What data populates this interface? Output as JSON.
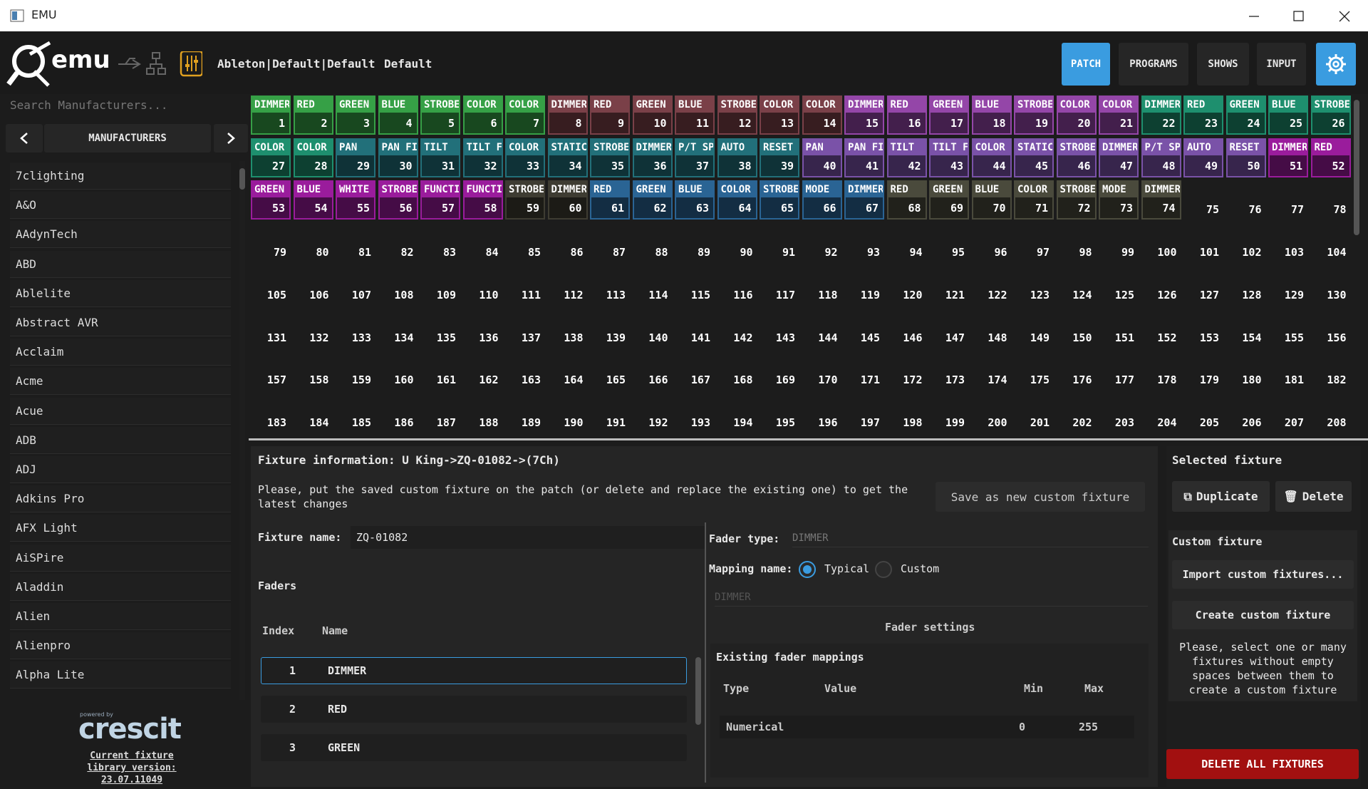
{
  "window": {
    "title": "EMU"
  },
  "toolbar": {
    "logo": "emu",
    "path": "Ableton|Default|Default",
    "profile": "Default",
    "tabs": [
      "PATCH",
      "PROGRAMS",
      "SHOWS",
      "INPUT"
    ]
  },
  "sidebar": {
    "search_placeholder": "Search Manufacturers...",
    "header": "MANUFACTURERS",
    "manufacturers": [
      "7clighting",
      "A&O",
      "AAdynTech",
      "ABD",
      "Ablelite",
      "Abstract AVR",
      "Acclaim",
      "Acme",
      "Acue",
      "ADB",
      "ADJ",
      "Adkins Pro",
      "AFX Light",
      "AiSPire",
      "Aladdin",
      "Alien",
      "Alienpro",
      "Alpha Lite"
    ],
    "powered_by": "powered by",
    "brand": "crescit",
    "library_version": "Current fixture library version: 23.07.11049"
  },
  "patch": {
    "fixtures": [
      {
        "color": "#36a046",
        "channels": [
          {
            "number": 1,
            "label": "DIMMER"
          },
          {
            "number": 2,
            "label": "RED"
          },
          {
            "number": 3,
            "label": "GREEN"
          },
          {
            "number": 4,
            "label": "BLUE"
          },
          {
            "number": 5,
            "label": "STROBE"
          },
          {
            "number": 6,
            "label": "COLOR"
          },
          {
            "number": 7,
            "label": "COLOR"
          }
        ]
      },
      {
        "color": "#7a4048",
        "channels": [
          {
            "number": 8,
            "label": "DIMMER"
          },
          {
            "number": 9,
            "label": "RED"
          },
          {
            "number": 10,
            "label": "GREEN"
          },
          {
            "number": 11,
            "label": "BLUE"
          },
          {
            "number": 12,
            "label": "STROBE"
          },
          {
            "number": 13,
            "label": "COLOR"
          },
          {
            "number": 14,
            "label": "COLOR"
          }
        ]
      },
      {
        "color": "#9446a8",
        "channels": [
          {
            "number": 15,
            "label": "DIMMER"
          },
          {
            "number": 16,
            "label": "RED"
          },
          {
            "number": 17,
            "label": "GREEN"
          },
          {
            "number": 18,
            "label": "BLUE"
          },
          {
            "number": 19,
            "label": "STROBE"
          },
          {
            "number": 20,
            "label": "COLOR"
          },
          {
            "number": 21,
            "label": "COLOR"
          }
        ]
      },
      {
        "color": "#1e8f6e",
        "channels": [
          {
            "number": 22,
            "label": "DIMMER"
          },
          {
            "number": 23,
            "label": "RED"
          },
          {
            "number": 24,
            "label": "GREEN"
          },
          {
            "number": 25,
            "label": "BLUE"
          },
          {
            "number": 26,
            "label": "STROBE"
          },
          {
            "number": 27,
            "label": "COLOR"
          },
          {
            "number": 28,
            "label": "COLOR"
          }
        ]
      },
      {
        "color": "#22707a",
        "channels": [
          {
            "number": 29,
            "label": "PAN"
          },
          {
            "number": 30,
            "label": "PAN FINE"
          },
          {
            "number": 31,
            "label": "TILT"
          },
          {
            "number": 32,
            "label": "TILT FINE"
          },
          {
            "number": 33,
            "label": "COLOR"
          },
          {
            "number": 34,
            "label": "STATIC"
          },
          {
            "number": 35,
            "label": "STROBE"
          },
          {
            "number": 36,
            "label": "DIMMER"
          },
          {
            "number": 37,
            "label": "P/T SPEED"
          },
          {
            "number": 38,
            "label": "AUTO"
          },
          {
            "number": 39,
            "label": "RESET"
          }
        ]
      },
      {
        "color": "#7a52a8",
        "channels": [
          {
            "number": 40,
            "label": "PAN"
          },
          {
            "number": 41,
            "label": "PAN FINE"
          },
          {
            "number": 42,
            "label": "TILT"
          },
          {
            "number": 43,
            "label": "TILT FINE"
          },
          {
            "number": 44,
            "label": "COLOR"
          },
          {
            "number": 45,
            "label": "STATIC"
          },
          {
            "number": 46,
            "label": "STROBE"
          },
          {
            "number": 47,
            "label": "DIMMER"
          },
          {
            "number": 48,
            "label": "P/T SPEED"
          },
          {
            "number": 49,
            "label": "AUTO"
          },
          {
            "number": 50,
            "label": "RESET"
          }
        ]
      },
      {
        "color": "#9a1c9c",
        "channels": [
          {
            "number": 51,
            "label": "DIMMER"
          },
          {
            "number": 52,
            "label": "RED"
          },
          {
            "number": 53,
            "label": "GREEN"
          },
          {
            "number": 54,
            "label": "BLUE"
          },
          {
            "number": 55,
            "label": "WHITE"
          },
          {
            "number": 56,
            "label": "STROBE"
          },
          {
            "number": 57,
            "label": "FUNCTION"
          },
          {
            "number": 58,
            "label": "FUNCTION"
          }
        ]
      },
      {
        "color": "#3e3c32",
        "channels": [
          {
            "number": 59,
            "label": "STROBE"
          },
          {
            "number": 60,
            "label": "DIMMER"
          }
        ]
      },
      {
        "color": "#2a6494",
        "channels": [
          {
            "number": 61,
            "label": "RED"
          },
          {
            "number": 62,
            "label": "GREEN"
          },
          {
            "number": 63,
            "label": "BLUE"
          },
          {
            "number": 64,
            "label": "COLOR"
          },
          {
            "number": 65,
            "label": "STROBE"
          },
          {
            "number": 66,
            "label": "MODE"
          },
          {
            "number": 67,
            "label": "DIMMER"
          }
        ]
      },
      {
        "color": "#4a4a3c",
        "channels": [
          {
            "number": 68,
            "label": "RED"
          },
          {
            "number": 69,
            "label": "GREEN"
          },
          {
            "number": 70,
            "label": "BLUE"
          },
          {
            "number": 71,
            "label": "COLOR"
          },
          {
            "number": 72,
            "label": "STROBE"
          },
          {
            "number": 73,
            "label": "MODE"
          },
          {
            "number": 74,
            "label": "DIMMER"
          }
        ]
      }
    ],
    "free_channels": [
      75,
      76,
      77,
      78,
      79,
      80,
      81,
      82,
      83,
      84,
      85,
      86,
      87,
      88,
      89,
      90,
      91,
      92,
      93,
      94,
      95,
      96,
      97,
      98,
      99,
      100,
      101,
      102,
      103,
      104,
      105,
      106,
      107,
      108,
      109,
      110,
      111,
      112,
      113,
      114,
      115,
      116,
      117,
      118,
      119,
      120,
      121,
      122,
      123,
      124,
      125,
      126,
      127,
      128,
      129,
      130,
      131,
      132,
      133,
      134,
      135,
      136,
      137,
      138,
      139,
      140,
      141,
      142,
      143,
      144,
      145,
      146,
      147,
      148,
      149,
      150,
      151,
      152,
      153,
      154,
      155,
      156,
      157,
      158,
      159,
      160,
      161,
      162,
      163,
      164,
      165,
      166,
      167,
      168,
      169,
      170,
      171,
      172,
      173,
      174,
      175,
      176,
      177,
      178,
      179,
      180,
      181,
      182,
      183,
      184,
      185,
      186,
      187,
      188,
      189,
      190,
      191,
      192,
      193,
      194,
      195,
      196,
      197,
      198,
      199,
      200,
      201,
      202,
      203,
      204,
      205,
      206,
      207,
      208
    ]
  },
  "fixture_info": {
    "title": "Fixture information: U King->ZQ-01082->(7Ch)",
    "note": "Please, put the saved custom fixture on the patch (or delete and replace the existing one) to get the latest changes",
    "save_button": "Save as new custom fixture",
    "name_label": "Fixture name:",
    "name_value": "ZQ-01082",
    "faders_label": "Faders",
    "faders_headers": [
      "Index",
      "Name"
    ],
    "faders": [
      [
        1,
        "DIMMER"
      ],
      [
        2,
        "RED"
      ],
      [
        3,
        "GREEN"
      ]
    ],
    "fader_type_label": "Fader type:",
    "fader_type_value": "DIMMER",
    "mapping_label": "Mapping name:",
    "mapping_options": [
      "Typical",
      "Custom"
    ],
    "mapping_value": "DIMMER",
    "fader_settings": "Fader settings",
    "mappings_title": "Existing fader mappings",
    "mappings_headers": [
      "Type",
      "Value",
      "Min",
      "Max"
    ],
    "mappings": [
      [
        "Numerical",
        "",
        0,
        255
      ]
    ]
  },
  "right_panel": {
    "selected_title": "Selected fixture",
    "duplicate": "Duplicate",
    "delete": "Delete",
    "custom_title": "Custom fixture",
    "import": "Import custom fixtures...",
    "create": "Create custom fixture",
    "note": "Please, select one or many fixtures without empty spaces between them to create a custom fixture",
    "delete_all": "DELETE ALL FIXTURES"
  }
}
